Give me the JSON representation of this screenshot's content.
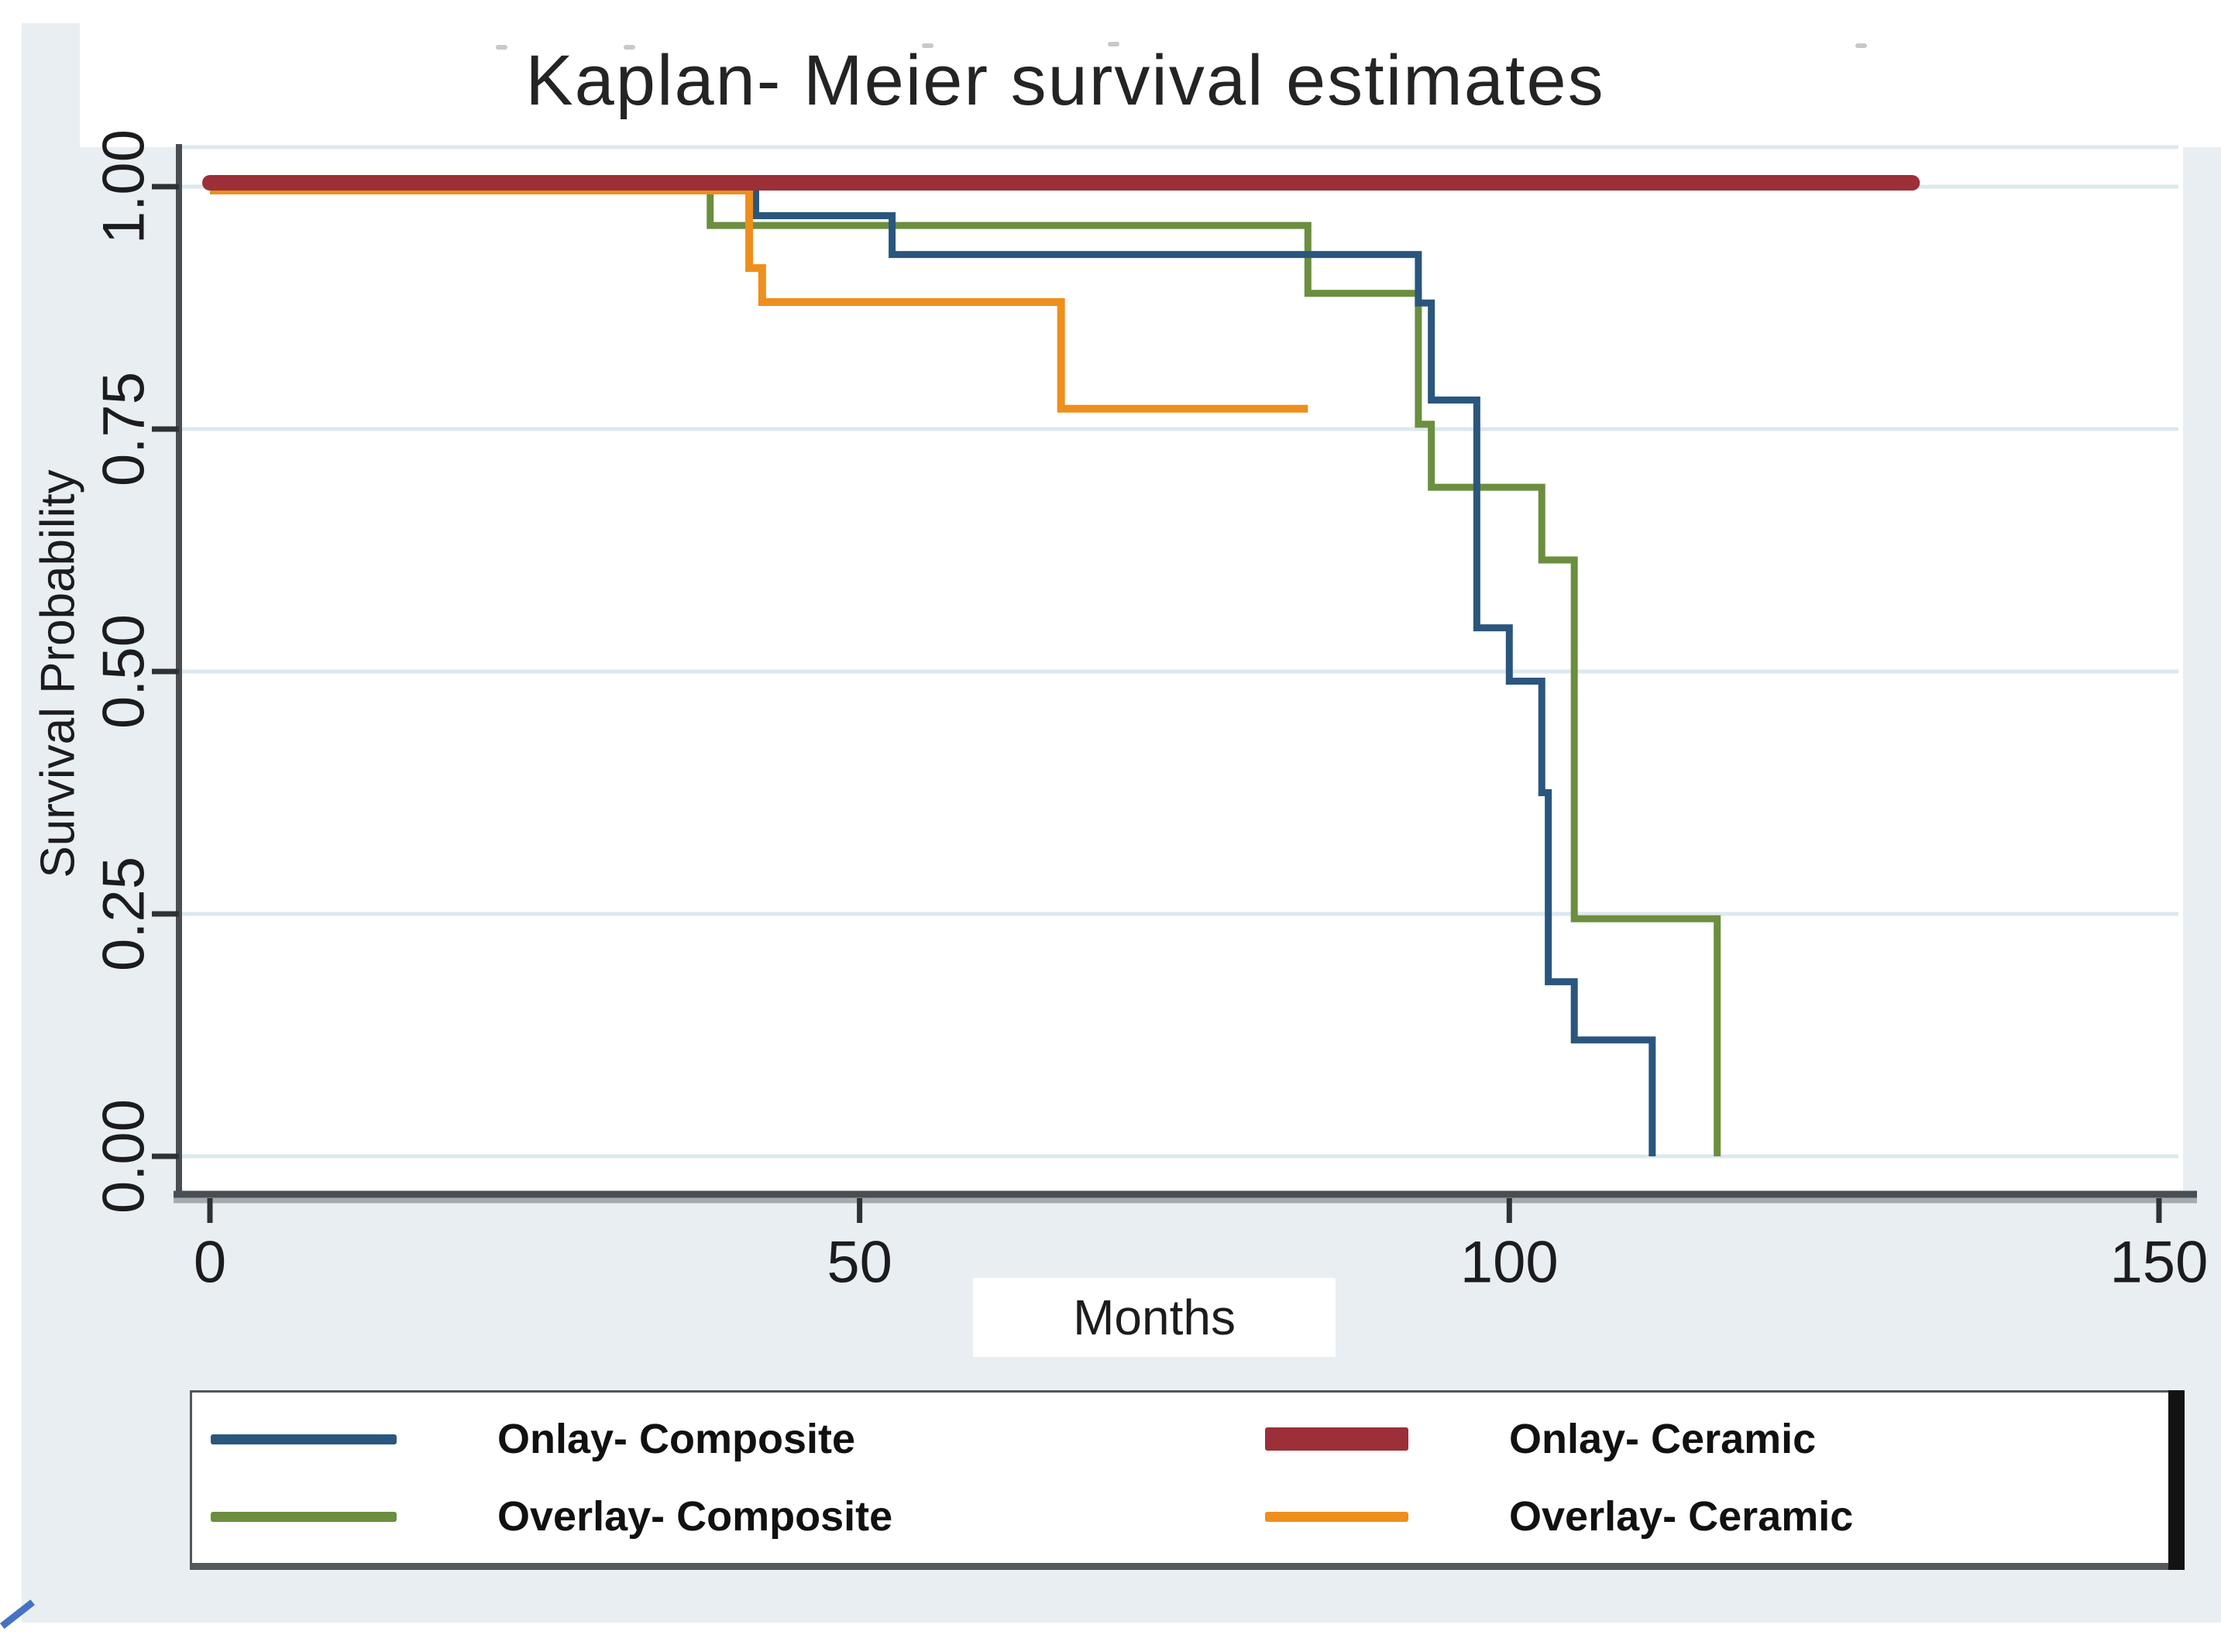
{
  "title": "Kaplan- Meier survival estimates",
  "x_axis": {
    "label": "Months",
    "ticks": [
      "0",
      "50",
      "100",
      "150"
    ],
    "tick_values": [
      0,
      50,
      100,
      150
    ],
    "range": [
      0,
      150
    ]
  },
  "y_axis": {
    "label": "Survival Probability",
    "ticks": [
      "0.00",
      "0.25",
      "0.50",
      "0.75",
      "1.00"
    ],
    "tick_values": [
      0,
      0.25,
      0.5,
      0.75,
      1
    ],
    "range": [
      0,
      1
    ]
  },
  "legend": {
    "items": [
      {
        "label": "Onlay- Composite",
        "series_index": 0
      },
      {
        "label": "Onlay- Ceramic",
        "series_index": 1
      },
      {
        "label": "Overlay- Composite",
        "series_index": 2
      },
      {
        "label": "Overlay- Ceramic",
        "series_index": 3
      }
    ]
  },
  "colors": {
    "page_background": "#e9eef2",
    "plot_background": "#ffffff",
    "gridline": "#dce8ef",
    "axis": "#4a4e52",
    "axis_shadow": "#a2abb0",
    "tick": "#2f3234",
    "text": "#1c1c1e"
  },
  "chart_data": {
    "type": "line",
    "subtype": "kaplan-meier-step",
    "title": "Kaplan- Meier survival estimates",
    "xlabel": "Months",
    "ylabel": "Survival Probability",
    "xlim": [
      0,
      155
    ],
    "ylim": [
      0,
      1
    ],
    "grid": true,
    "legend_position": "bottom",
    "series": [
      {
        "name": "Onlay- Composite",
        "color": "#2a567e",
        "width": 9,
        "steps": [
          [
            0,
            1.0
          ],
          [
            42,
            0.97
          ],
          [
            52.5,
            0.93
          ],
          [
            93,
            0.88
          ],
          [
            94,
            0.78
          ],
          [
            97.5,
            0.545
          ],
          [
            100,
            0.49
          ],
          [
            102.5,
            0.375
          ],
          [
            103,
            0.18
          ],
          [
            105,
            0.12
          ],
          [
            111,
            0.0
          ]
        ],
        "end_month": 111
      },
      {
        "name": "Onlay- Ceramic",
        "color": "#9c2f38",
        "width": 20,
        "steps": [
          [
            0,
            1.0
          ]
        ],
        "end_month": 131
      },
      {
        "name": "Overlay- Composite",
        "color": "#6b8e3f",
        "width": 9,
        "steps": [
          [
            0,
            1.0
          ],
          [
            38.5,
            0.96
          ],
          [
            84.5,
            0.89
          ],
          [
            93,
            0.755
          ],
          [
            94,
            0.69
          ],
          [
            102.5,
            0.615
          ],
          [
            105,
            0.245
          ],
          [
            116,
            0.0
          ]
        ],
        "end_month": 116
      },
      {
        "name": "Overlay- Ceramic",
        "color": "#ee8f1d",
        "width": 10,
        "steps": [
          [
            0,
            1.0
          ],
          [
            41.5,
            0.92
          ],
          [
            42.5,
            0.885
          ],
          [
            65.5,
            0.775
          ]
        ],
        "end_month": 84.5
      }
    ]
  }
}
